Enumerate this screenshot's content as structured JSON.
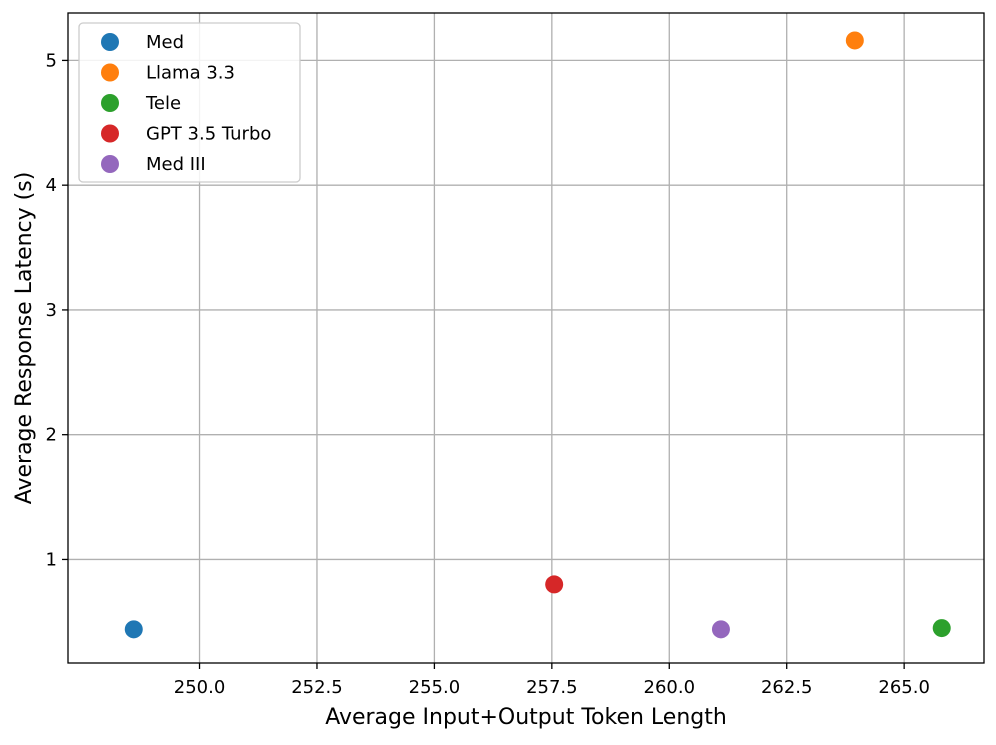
{
  "chart_data": {
    "type": "scatter",
    "title": "",
    "xlabel": "Average Input+Output Token Length",
    "ylabel": "Average Response Latency (s)",
    "xlim": [
      247.2,
      266.7
    ],
    "ylim": [
      0.17,
      5.38
    ],
    "xticks": [
      250.0,
      252.5,
      255.0,
      257.5,
      260.0,
      262.5,
      265.0
    ],
    "xtick_labels": [
      "250.0",
      "252.5",
      "255.0",
      "257.5",
      "260.0",
      "262.5",
      "265.0"
    ],
    "yticks": [
      1,
      2,
      3,
      4,
      5
    ],
    "ytick_labels": [
      "1",
      "2",
      "3",
      "4",
      "5"
    ],
    "grid": true,
    "legend_position": "top-left",
    "series": [
      {
        "name": "Med",
        "color": "#1f77b4",
        "x": [
          248.6
        ],
        "y": [
          0.44
        ]
      },
      {
        "name": "Llama 3.3",
        "color": "#ff7f0e",
        "x": [
          263.95
        ],
        "y": [
          5.16
        ]
      },
      {
        "name": "Tele",
        "color": "#2ca02c",
        "x": [
          265.8
        ],
        "y": [
          0.45
        ]
      },
      {
        "name": "GPT 3.5 Turbo",
        "color": "#d62728",
        "x": [
          257.55
        ],
        "y": [
          0.8
        ]
      },
      {
        "name": "Med III",
        "color": "#9467bd",
        "x": [
          261.1
        ],
        "y": [
          0.44
        ]
      }
    ]
  }
}
